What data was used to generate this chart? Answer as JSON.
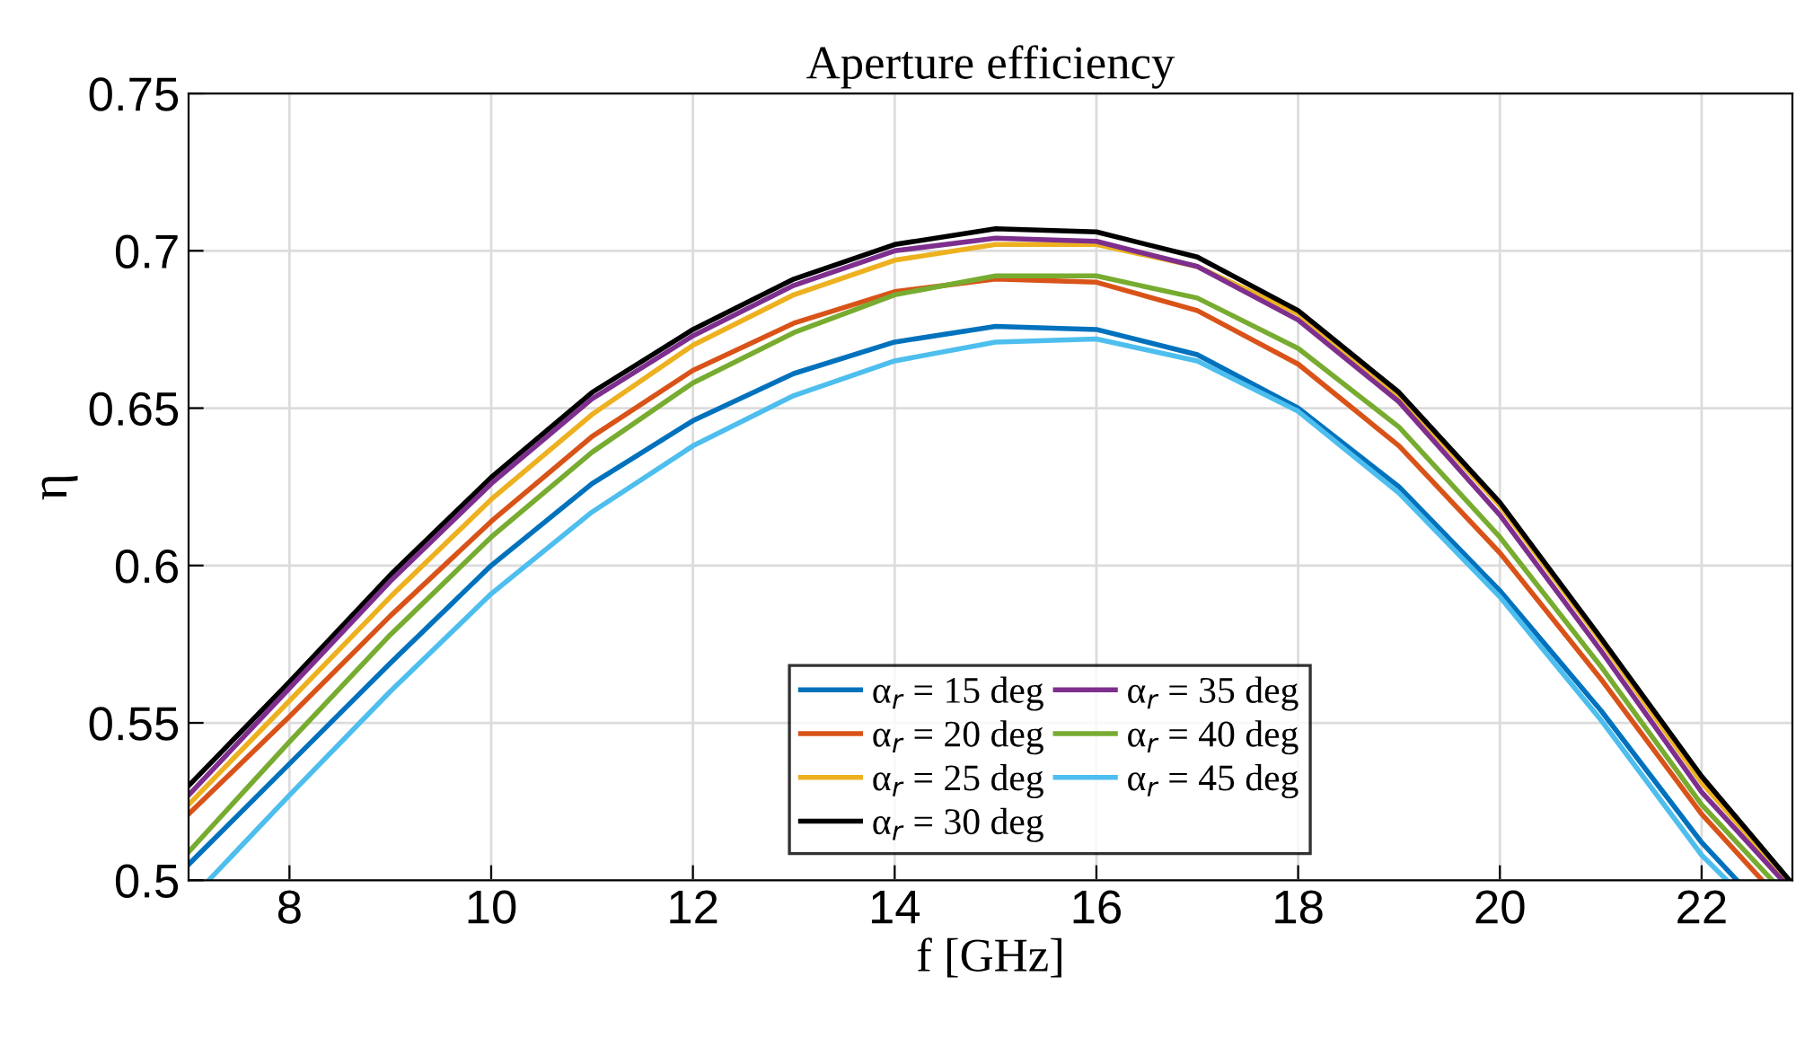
{
  "chart_data": {
    "type": "line",
    "title": "Aperture efficiency",
    "xlabel": "f [GHz]",
    "ylabel": "η",
    "xlim": [
      7,
      22.9
    ],
    "ylim": [
      0.5,
      0.75
    ],
    "xticks": [
      8,
      10,
      12,
      14,
      16,
      18,
      20,
      22
    ],
    "yticks": [
      0.5,
      0.55,
      0.6,
      0.65,
      0.7,
      0.75
    ],
    "grid": true,
    "legend": "bottom",
    "marker": "none",
    "line_style": "solid",
    "series": [
      {
        "name": "α$_{r}$ = 15 deg",
        "color": "#0072bd",
        "x": [
          7,
          8,
          9,
          10,
          11,
          12,
          13,
          14,
          15,
          16,
          17,
          18,
          19,
          20,
          21,
          22,
          22.35
        ],
        "values": [
          0.505,
          0.537,
          0.569,
          0.6,
          0.626,
          0.646,
          0.661,
          0.671,
          0.676,
          0.675,
          0.667,
          0.65,
          0.625,
          0.592,
          0.554,
          0.512,
          0.5
        ]
      },
      {
        "name": "α$_{r}$ = 20 deg",
        "color": "#d95319",
        "x": [
          7,
          8,
          9,
          10,
          11,
          12,
          13,
          14,
          15,
          16,
          17,
          18,
          19,
          20,
          21,
          22,
          22.6
        ],
        "values": [
          0.521,
          0.552,
          0.584,
          0.614,
          0.641,
          0.662,
          0.677,
          0.687,
          0.691,
          0.69,
          0.681,
          0.664,
          0.638,
          0.604,
          0.564,
          0.521,
          0.5
        ]
      },
      {
        "name": "α$_{r}$ = 25 deg",
        "color": "#edb120",
        "x": [
          7,
          8,
          9,
          10,
          11,
          12,
          13,
          14,
          15,
          16,
          17,
          18,
          19,
          20,
          21,
          22,
          22.85
        ],
        "values": [
          0.524,
          0.557,
          0.59,
          0.621,
          0.648,
          0.67,
          0.686,
          0.697,
          0.702,
          0.702,
          0.695,
          0.68,
          0.654,
          0.619,
          0.576,
          0.531,
          0.5
        ]
      },
      {
        "name": "α$_{r}$ = 30 deg",
        "color": "#000000",
        "x": [
          7,
          8,
          9,
          10,
          11,
          12,
          13,
          14,
          15,
          16,
          17,
          18,
          19,
          20,
          21,
          22,
          22.87
        ],
        "values": [
          0.53,
          0.563,
          0.597,
          0.628,
          0.655,
          0.675,
          0.691,
          0.702,
          0.707,
          0.706,
          0.698,
          0.681,
          0.655,
          0.62,
          0.577,
          0.533,
          0.5
        ]
      },
      {
        "name": "α$_{r}$ = 35 deg",
        "color": "#7e2f8e",
        "x": [
          7,
          8,
          9,
          10,
          11,
          12,
          13,
          14,
          15,
          16,
          17,
          18,
          19,
          20,
          21,
          22,
          22.8
        ],
        "values": [
          0.527,
          0.561,
          0.595,
          0.626,
          0.653,
          0.673,
          0.689,
          0.7,
          0.704,
          0.703,
          0.695,
          0.678,
          0.652,
          0.616,
          0.573,
          0.528,
          0.5
        ]
      },
      {
        "name": "α$_{r}$ = 40 deg",
        "color": "#77ac30",
        "x": [
          7,
          8,
          9,
          10,
          11,
          12,
          13,
          14,
          15,
          16,
          17,
          18,
          19,
          20,
          21,
          22,
          22.7
        ],
        "values": [
          0.509,
          0.544,
          0.578,
          0.609,
          0.636,
          0.658,
          0.674,
          0.686,
          0.692,
          0.692,
          0.685,
          0.669,
          0.644,
          0.609,
          0.568,
          0.524,
          0.5
        ]
      },
      {
        "name": "α$_{r}$ = 45 deg",
        "color": "#4dbeee",
        "x": [
          7.2,
          8,
          9,
          10,
          11,
          12,
          13,
          14,
          15,
          16,
          17,
          18,
          19,
          20,
          21,
          22,
          22.25
        ],
        "values": [
          0.5,
          0.527,
          0.56,
          0.591,
          0.617,
          0.638,
          0.654,
          0.665,
          0.671,
          0.672,
          0.665,
          0.649,
          0.623,
          0.59,
          0.551,
          0.508,
          0.5
        ]
      }
    ]
  }
}
